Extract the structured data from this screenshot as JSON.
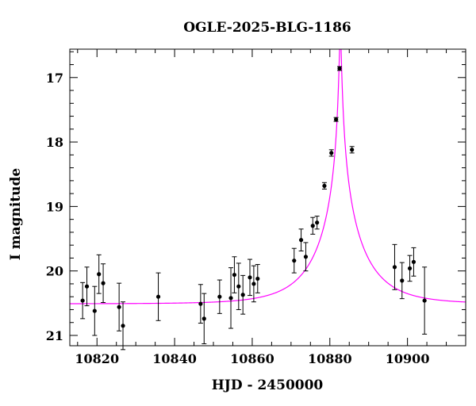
{
  "chart_data": {
    "type": "scatter",
    "title": "OGLE-2025-BLG-1186",
    "xlabel": "HJD - 2450000",
    "ylabel": "I magnitude",
    "xlim": [
      10813,
      10915
    ],
    "ylim": [
      21.16,
      16.56
    ],
    "y_inverted": true,
    "x_ticks": [
      10820,
      10840,
      10860,
      10880,
      10900
    ],
    "y_ticks": [
      17,
      18,
      19,
      20,
      21
    ],
    "grid": false,
    "model_color": "#ff00ff",
    "model": {
      "description_visible": false,
      "t0": 10882.7,
      "tE": 12.3,
      "u0": 0.021,
      "baseline_mag": 20.51
    },
    "points": [
      {
        "x": 10816.3,
        "y": 20.46,
        "err": 0.28
      },
      {
        "x": 10817.4,
        "y": 20.24,
        "err": 0.3
      },
      {
        "x": 10819.4,
        "y": 20.62,
        "err": 0.38
      },
      {
        "x": 10820.5,
        "y": 20.05,
        "err": 0.3
      },
      {
        "x": 10821.6,
        "y": 20.19,
        "err": 0.3
      },
      {
        "x": 10825.7,
        "y": 20.56,
        "err": 0.37
      },
      {
        "x": 10826.7,
        "y": 20.85,
        "err": 0.37
      },
      {
        "x": 10835.8,
        "y": 20.4,
        "err": 0.37
      },
      {
        "x": 10846.7,
        "y": 20.51,
        "err": 0.3
      },
      {
        "x": 10847.6,
        "y": 20.74,
        "err": 0.39
      },
      {
        "x": 10851.6,
        "y": 20.4,
        "err": 0.26
      },
      {
        "x": 10854.5,
        "y": 20.42,
        "err": 0.47
      },
      {
        "x": 10855.4,
        "y": 20.06,
        "err": 0.28
      },
      {
        "x": 10856.5,
        "y": 20.24,
        "err": 0.36
      },
      {
        "x": 10857.6,
        "y": 20.37,
        "err": 0.3
      },
      {
        "x": 10859.4,
        "y": 20.1,
        "err": 0.28
      },
      {
        "x": 10860.4,
        "y": 20.2,
        "err": 0.28
      },
      {
        "x": 10861.4,
        "y": 20.12,
        "err": 0.22
      },
      {
        "x": 10870.8,
        "y": 19.84,
        "err": 0.19
      },
      {
        "x": 10872.6,
        "y": 19.52,
        "err": 0.17
      },
      {
        "x": 10873.8,
        "y": 19.78,
        "err": 0.22
      },
      {
        "x": 10875.6,
        "y": 19.3,
        "err": 0.13
      },
      {
        "x": 10876.7,
        "y": 19.25,
        "err": 0.1
      },
      {
        "x": 10878.6,
        "y": 18.68,
        "err": 0.05
      },
      {
        "x": 10880.4,
        "y": 18.17,
        "err": 0.05
      },
      {
        "x": 10881.6,
        "y": 17.65,
        "err": 0.03
      },
      {
        "x": 10882.5,
        "y": 16.86,
        "err": 0.03
      },
      {
        "x": 10885.7,
        "y": 18.12,
        "err": 0.05
      },
      {
        "x": 10896.7,
        "y": 19.94,
        "err": 0.35
      },
      {
        "x": 10898.6,
        "y": 20.15,
        "err": 0.28
      },
      {
        "x": 10900.6,
        "y": 19.96,
        "err": 0.2
      },
      {
        "x": 10901.6,
        "y": 19.86,
        "err": 0.22
      },
      {
        "x": 10904.4,
        "y": 20.46,
        "err": 0.52
      }
    ]
  }
}
